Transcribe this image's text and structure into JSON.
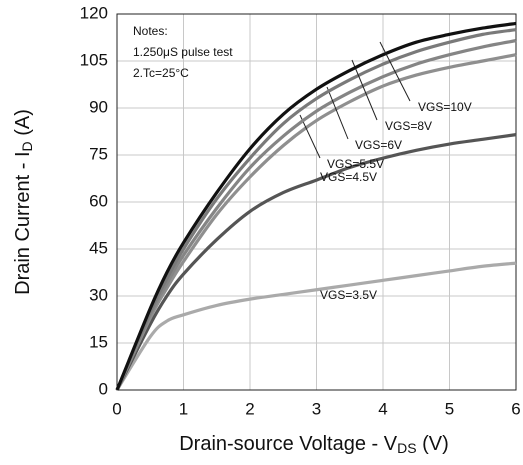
{
  "chart_data": {
    "type": "line",
    "xlabel": {
      "main": "Drain-source Voltage - V",
      "sub": "DS",
      "tail": " (V)"
    },
    "ylabel": {
      "main": "Drain Current - I",
      "sub": "D",
      "tail": " (A)"
    },
    "notes": [
      "Notes:",
      "1.250μS pulse test",
      "2.Tc=25°C"
    ],
    "x": [
      0,
      0.5,
      0.75,
      1,
      1.5,
      2,
      2.5,
      3,
      3.5,
      4,
      4.5,
      5,
      5.5,
      6
    ],
    "series": [
      {
        "name": "VGS=10V",
        "color": "#111111",
        "values": [
          0,
          26,
          37.5,
          47,
          63,
          77,
          88,
          96,
          102,
          107,
          111,
          113.5,
          115.5,
          117
        ]
      },
      {
        "name": "VGS=8V",
        "color": "#7a7a7a",
        "values": [
          0,
          25,
          35.5,
          45,
          61,
          74,
          85,
          93,
          99,
          104,
          108,
          111,
          113.5,
          115
        ]
      },
      {
        "name": "VGS=6V",
        "color": "#858585",
        "values": [
          0,
          24,
          34,
          43,
          58,
          71,
          81,
          89,
          95,
          100,
          104,
          107,
          109.5,
          111.5
        ]
      },
      {
        "name": "VGS=5.5V",
        "color": "#8f8f8f",
        "values": [
          0,
          23,
          32.5,
          41,
          56,
          68,
          78,
          86,
          92,
          97,
          100.5,
          103,
          105,
          107
        ]
      },
      {
        "name": "VGS=4.5V",
        "color": "#555555",
        "values": [
          0,
          21,
          30,
          37,
          48,
          57,
          63,
          67,
          71,
          74,
          76.5,
          78.5,
          80,
          81.5
        ]
      },
      {
        "name": "VGS=3.5V",
        "color": "#aaaaaa",
        "values": [
          0,
          17,
          22,
          24,
          27,
          29,
          30.5,
          32,
          33.5,
          35,
          36.5,
          38,
          39.5,
          40.5
        ]
      }
    ],
    "xlim": [
      0,
      6
    ],
    "xticks": [
      0,
      1,
      2,
      3,
      4,
      5,
      6
    ],
    "ylim": [
      0,
      120
    ],
    "yticks": [
      0,
      15,
      30,
      45,
      60,
      75,
      90,
      105,
      120
    ],
    "grid": true
  }
}
